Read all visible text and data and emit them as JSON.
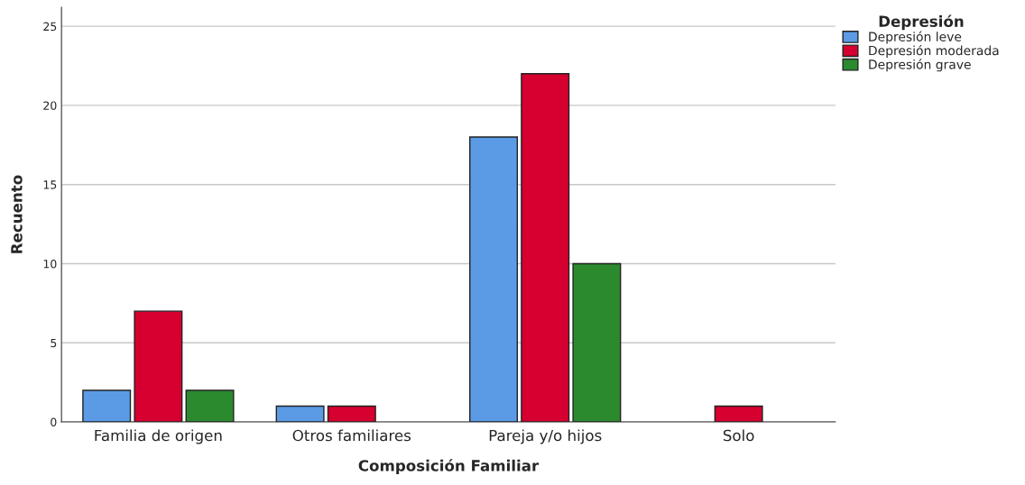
{
  "chart_data": {
    "type": "bar",
    "xlabel": "Composición Familiar",
    "ylabel": "Recuento",
    "legend_title": "Depresión",
    "categories": [
      "Familia de origen",
      "Otros familiares",
      "Pareja y/o hijos",
      "Solo"
    ],
    "series": [
      {
        "name": "Depresión leve",
        "color": "#5b9be6",
        "values": [
          2,
          1,
          18,
          null
        ]
      },
      {
        "name": "Depresión moderada",
        "color": "#d5002f",
        "values": [
          7,
          1,
          22,
          1
        ]
      },
      {
        "name": "Depresión grave",
        "color": "#2b8a2e",
        "values": [
          2,
          null,
          10,
          null
        ]
      }
    ],
    "ylim": [
      0,
      26.2
    ],
    "yticks": [
      0,
      5,
      10,
      15,
      20,
      25
    ],
    "grid": "y",
    "legend": "top right"
  }
}
